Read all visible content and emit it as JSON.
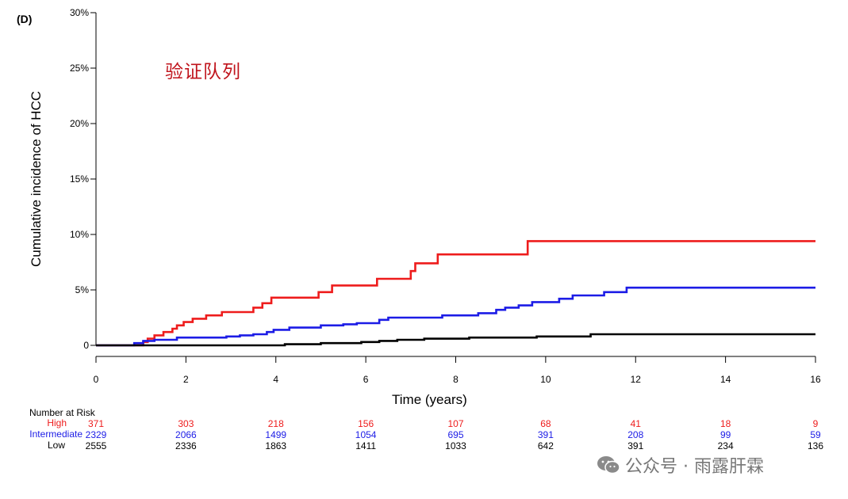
{
  "panel_label": "(D)",
  "cohort_title": "验证队列",
  "watermark": {
    "text": "公众号 · 雨露肝霖",
    "icon": "wechat-icon"
  },
  "risk_table": {
    "header": "Number at Risk",
    "rows": [
      {
        "name": "High",
        "color": "#ee1c1c",
        "counts": [
          "371",
          "303",
          "218",
          "156",
          "107",
          "68",
          "41",
          "18",
          "9"
        ]
      },
      {
        "name": "Intermediate",
        "color": "#1c1ce6",
        "counts": [
          "2329",
          "2066",
          "1499",
          "1054",
          "695",
          "391",
          "208",
          "99",
          "59"
        ]
      },
      {
        "name": "Low",
        "color": "#000000",
        "counts": [
          "2555",
          "2336",
          "1863",
          "1411",
          "1033",
          "642",
          "391",
          "234",
          "136"
        ]
      }
    ]
  },
  "chart_data": {
    "type": "line",
    "step": true,
    "xlabel": "Time (years)",
    "ylabel": "Cumulative incidence of HCC",
    "xlim": [
      0,
      16
    ],
    "ylim": [
      0,
      30
    ],
    "x_ticks": [
      0,
      2,
      4,
      6,
      8,
      10,
      12,
      14,
      16
    ],
    "x_tick_labels": [
      "0",
      "2",
      "4",
      "6",
      "8",
      "10",
      "12",
      "14",
      "16"
    ],
    "y_ticks": [
      0,
      5,
      10,
      15,
      20,
      25,
      30
    ],
    "y_tick_labels": [
      "0",
      "5%",
      "10%",
      "15%",
      "20%",
      "25%",
      "30%"
    ],
    "grid": false,
    "series": [
      {
        "name": "High",
        "color": "#ee1c1c",
        "points": [
          [
            0,
            0
          ],
          [
            0.85,
            0
          ],
          [
            1.05,
            0.3
          ],
          [
            1.15,
            0.6
          ],
          [
            1.3,
            0.9
          ],
          [
            1.5,
            1.2
          ],
          [
            1.7,
            1.5
          ],
          [
            1.8,
            1.8
          ],
          [
            1.95,
            2.1
          ],
          [
            2.15,
            2.4
          ],
          [
            2.45,
            2.7
          ],
          [
            2.8,
            3.0
          ],
          [
            3.5,
            3.4
          ],
          [
            3.7,
            3.8
          ],
          [
            3.9,
            4.3
          ],
          [
            4.95,
            4.8
          ],
          [
            5.25,
            5.4
          ],
          [
            6.25,
            6.0
          ],
          [
            7.0,
            6.7
          ],
          [
            7.1,
            7.4
          ],
          [
            7.6,
            8.2
          ],
          [
            9.6,
            9.4
          ],
          [
            16,
            9.4
          ]
        ]
      },
      {
        "name": "Intermediate",
        "color": "#1c1ce6",
        "points": [
          [
            0,
            0
          ],
          [
            0.7,
            0
          ],
          [
            0.85,
            0.2
          ],
          [
            1.05,
            0.4
          ],
          [
            1.3,
            0.5
          ],
          [
            1.8,
            0.7
          ],
          [
            2.9,
            0.8
          ],
          [
            3.2,
            0.9
          ],
          [
            3.5,
            1.0
          ],
          [
            3.8,
            1.2
          ],
          [
            3.95,
            1.4
          ],
          [
            4.3,
            1.6
          ],
          [
            5.0,
            1.8
          ],
          [
            5.5,
            1.9
          ],
          [
            5.8,
            2.0
          ],
          [
            6.3,
            2.3
          ],
          [
            6.5,
            2.5
          ],
          [
            7.7,
            2.7
          ],
          [
            8.5,
            2.9
          ],
          [
            8.9,
            3.2
          ],
          [
            9.1,
            3.4
          ],
          [
            9.4,
            3.6
          ],
          [
            9.7,
            3.9
          ],
          [
            10.3,
            4.2
          ],
          [
            10.6,
            4.5
          ],
          [
            11.3,
            4.8
          ],
          [
            11.8,
            5.2
          ],
          [
            16,
            5.2
          ]
        ]
      },
      {
        "name": "Low",
        "color": "#000000",
        "points": [
          [
            0,
            0
          ],
          [
            3.5,
            0
          ],
          [
            4.2,
            0.1
          ],
          [
            5.0,
            0.2
          ],
          [
            5.9,
            0.3
          ],
          [
            6.3,
            0.4
          ],
          [
            6.7,
            0.5
          ],
          [
            7.3,
            0.6
          ],
          [
            8.3,
            0.7
          ],
          [
            9.8,
            0.8
          ],
          [
            11.0,
            1.0
          ],
          [
            16,
            1.0
          ]
        ]
      }
    ]
  }
}
